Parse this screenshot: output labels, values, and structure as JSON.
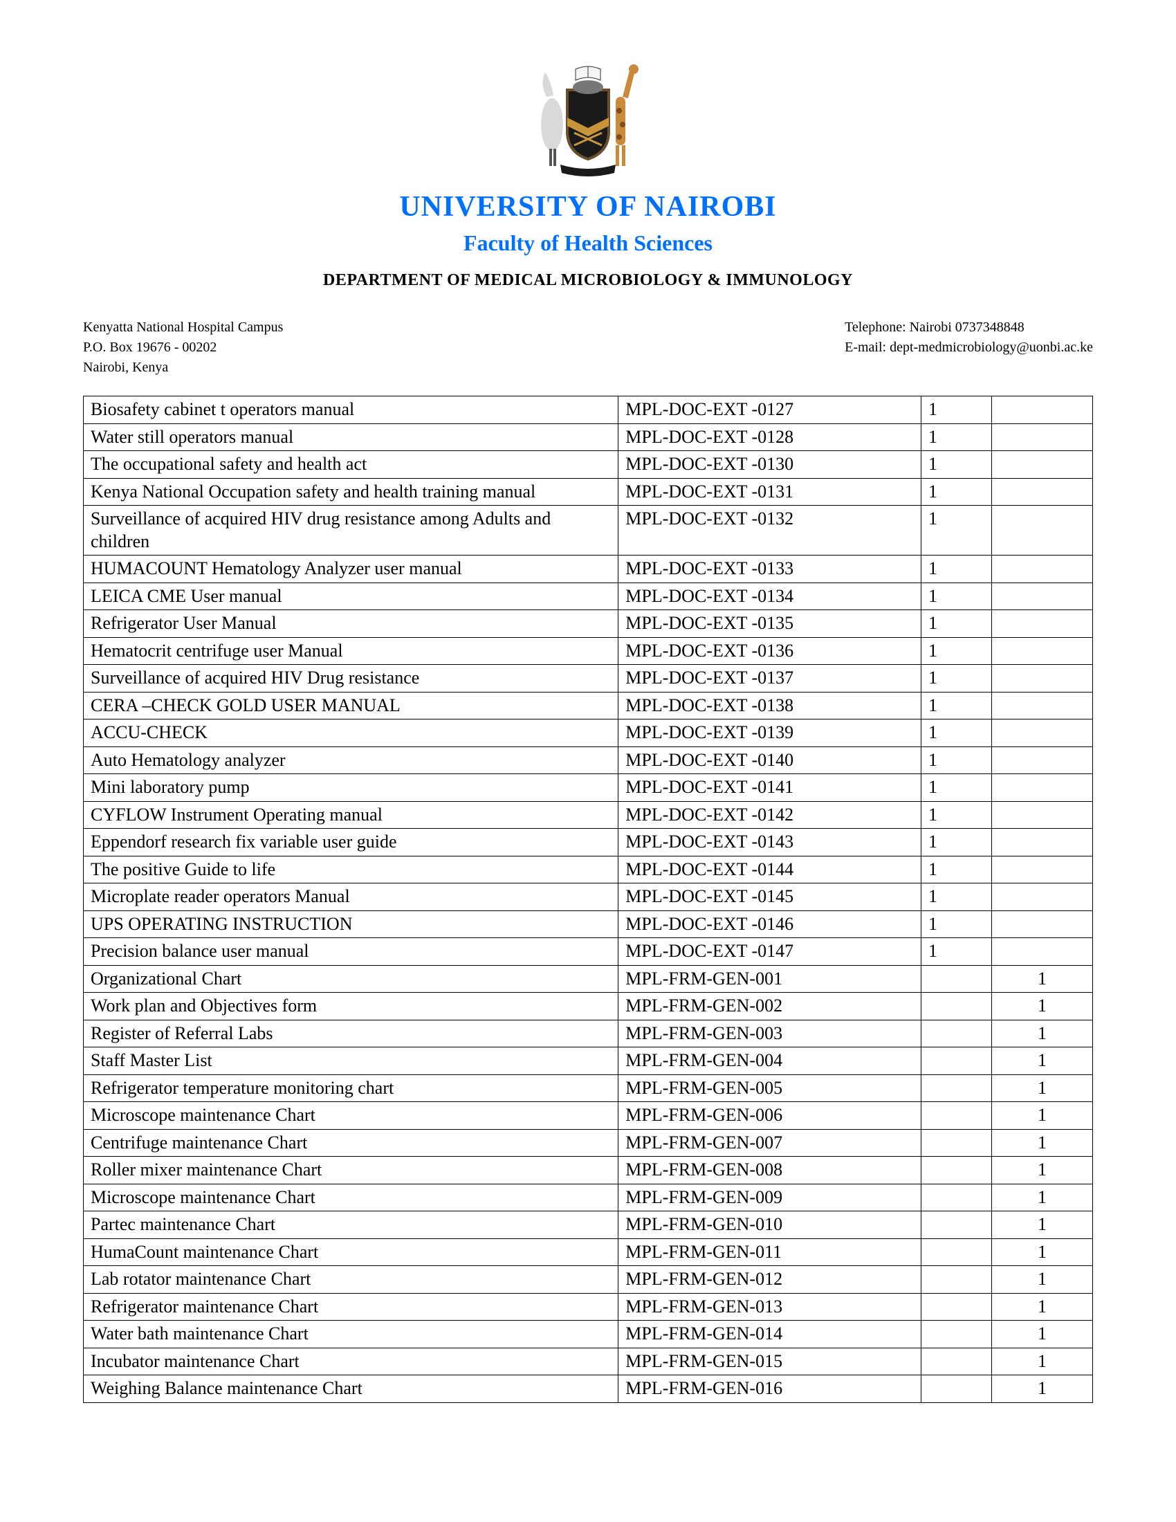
{
  "header": {
    "title_main": "UNIVERSITY OF NAIROBI",
    "title_sub": "Faculty of Health Sciences",
    "department": "DEPARTMENT OF MEDICAL MICROBIOLOGY & IMMUNOLOGY",
    "title_color": "#0070ff"
  },
  "contact": {
    "left_line1": "Kenyatta National Hospital Campus",
    "left_line2": "P.O. Box 19676 - 00202",
    "left_line3": "Nairobi, Kenya",
    "right_line1": "Telephone: Nairobi 0737348848",
    "right_line2": "E-mail:  dept-medmicrobiology@uonbi.ac.ke"
  },
  "logo": {
    "shield_fill": "#1a1a1a",
    "shield_border": "#6b4e2e",
    "band_fill": "#c9953b",
    "cross_fill": "#c9953b",
    "bird_fill": "#d9d9d9",
    "giraffe_fill": "#c98a3a",
    "giraffe_spot": "#7a4e20",
    "book_fill": "#f5f5f5",
    "ribbon_fill": "#1a1a1a"
  },
  "table": {
    "rows": [
      {
        "name": "Biosafety cabinet t operators manual",
        "code": "MPL-DOC-EXT -0127",
        "q1": "1",
        "q2": ""
      },
      {
        "name": "Water still operators manual",
        "code": "MPL-DOC-EXT -0128",
        "q1": "1",
        "q2": ""
      },
      {
        "name": "The occupational safety and health act",
        "code": "MPL-DOC-EXT -0130",
        "q1": "1",
        "q2": ""
      },
      {
        "name": "Kenya National Occupation safety and health training manual",
        "code": "MPL-DOC-EXT -0131",
        "q1": "1",
        "q2": ""
      },
      {
        "name": "Surveillance of acquired HIV drug resistance among Adults and children",
        "code": "MPL-DOC-EXT -0132",
        "q1": "1",
        "q2": ""
      },
      {
        "name": "HUMACOUNT Hematology Analyzer user manual",
        "code": "MPL-DOC-EXT -0133",
        "q1": "1",
        "q2": ""
      },
      {
        "name": "LEICA CME User manual",
        "code": "MPL-DOC-EXT -0134",
        "q1": "1",
        "q2": ""
      },
      {
        "name": "Refrigerator User Manual",
        "code": "MPL-DOC-EXT -0135",
        "q1": "1",
        "q2": "",
        "tall": true
      },
      {
        "name": "Hematocrit centrifuge user Manual",
        "code": "MPL-DOC-EXT -0136",
        "q1": "1",
        "q2": ""
      },
      {
        "name": "Surveillance of acquired HIV Drug resistance",
        "code": "MPL-DOC-EXT -0137",
        "q1": "1",
        "q2": ""
      },
      {
        "name": "CERA –CHECK GOLD USER MANUAL",
        "code": "MPL-DOC-EXT -0138",
        "q1": "1",
        "q2": ""
      },
      {
        "name": "ACCU-CHECK",
        "code": "MPL-DOC-EXT -0139",
        "q1": "1",
        "q2": ""
      },
      {
        "name": "Auto Hematology analyzer",
        "code": "MPL-DOC-EXT -0140",
        "q1": "1",
        "q2": ""
      },
      {
        "name": "Mini laboratory pump",
        "code": "MPL-DOC-EXT -0141",
        "q1": "1",
        "q2": ""
      },
      {
        "name": "CYFLOW Instrument Operating manual",
        "code": "MPL-DOC-EXT -0142",
        "q1": "1",
        "q2": ""
      },
      {
        "name": "Eppendorf research fix variable user guide",
        "code": "MPL-DOC-EXT -0143",
        "q1": "1",
        "q2": ""
      },
      {
        "name": "The positive Guide to life",
        "code": "MPL-DOC-EXT -0144",
        "q1": "1",
        "q2": ""
      },
      {
        "name": "Microplate reader operators Manual",
        "code": "MPL-DOC-EXT -0145",
        "q1": "1",
        "q2": ""
      },
      {
        "name": "UPS OPERATING INSTRUCTION",
        "code": "MPL-DOC-EXT -0146",
        "q1": "1",
        "q2": ""
      },
      {
        "name": "Precision balance user manual",
        "code": "MPL-DOC-EXT -0147",
        "q1": "1",
        "q2": ""
      },
      {
        "name": "Organizational Chart",
        "code": "MPL-FRM-GEN-001",
        "q1": "",
        "q2": "1"
      },
      {
        "name": "Work plan and Objectives form",
        "code": "MPL-FRM-GEN-002",
        "q1": "",
        "q2": "1"
      },
      {
        "name": "Register of Referral Labs",
        "code": "MPL-FRM-GEN-003",
        "q1": "",
        "q2": "1"
      },
      {
        "name": "Staff Master List",
        "code": "MPL-FRM-GEN-004",
        "q1": "",
        "q2": "1"
      },
      {
        "name": "Refrigerator temperature monitoring chart",
        "code": "MPL-FRM-GEN-005",
        "q1": "",
        "q2": "1"
      },
      {
        "name": "Microscope maintenance Chart",
        "code": "MPL-FRM-GEN-006",
        "q1": "",
        "q2": "1"
      },
      {
        "name": "Centrifuge maintenance Chart",
        "code": "MPL-FRM-GEN-007",
        "q1": "",
        "q2": "1"
      },
      {
        "name": "Roller mixer maintenance Chart",
        "code": "MPL-FRM-GEN-008",
        "q1": "",
        "q2": "1"
      },
      {
        "name": "Microscope maintenance Chart",
        "code": "MPL-FRM-GEN-009",
        "q1": "",
        "q2": "1"
      },
      {
        "name": "Partec maintenance Chart",
        "code": "MPL-FRM-GEN-010",
        "q1": "",
        "q2": "1"
      },
      {
        "name": "HumaCount  maintenance Chart",
        "code": "MPL-FRM-GEN-011",
        "q1": "",
        "q2": "1"
      },
      {
        "name": "Lab rotator maintenance Chart",
        "code": "MPL-FRM-GEN-012",
        "q1": "",
        "q2": "1"
      },
      {
        "name": "Refrigerator maintenance Chart",
        "code": "MPL-FRM-GEN-013",
        "q1": "",
        "q2": "1"
      },
      {
        "name": "Water bath maintenance Chart",
        "code": "MPL-FRM-GEN-014",
        "q1": "",
        "q2": "1"
      },
      {
        "name": "Incubator maintenance Chart",
        "code": "MPL-FRM-GEN-015",
        "q1": "",
        "q2": "1"
      },
      {
        "name": "Weighing Balance maintenance Chart",
        "code": "MPL-FRM-GEN-016",
        "q1": "",
        "q2": "1"
      }
    ]
  }
}
